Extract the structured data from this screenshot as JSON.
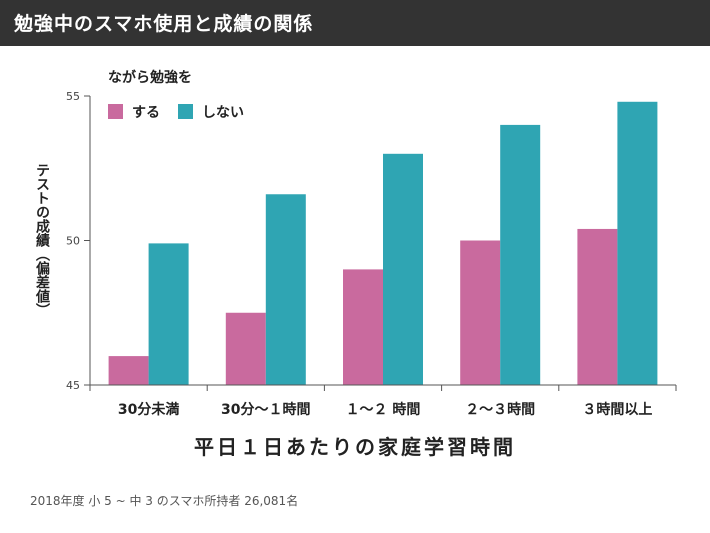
{
  "header": {
    "title": "勉強中のスマホ使用と成績の関係"
  },
  "footnote": "2018年度 小 5 ~ 中 3 のスマホ所持者 26,081名",
  "chart_data": {
    "type": "bar",
    "title": "",
    "legend_title": "ながら勉強を",
    "legend_position": "top-left",
    "categories": [
      "30分未満",
      "30分～１時間",
      "１～２ 時間",
      "２～３時間",
      "３時間以上"
    ],
    "series": [
      {
        "name": "する",
        "color": "#c96a9e",
        "values": [
          46.0,
          47.5,
          49.0,
          50.0,
          50.4
        ]
      },
      {
        "name": "しない",
        "color": "#2fa5b3",
        "values": [
          49.9,
          51.6,
          53.0,
          54.0,
          54.8
        ]
      }
    ],
    "xlabel": "平日１日あたりの家庭学習時間",
    "ylabel": "テストの成績（偏差値）",
    "yticks": [
      45,
      50,
      55
    ],
    "ylim": [
      45,
      55
    ],
    "grid": false
  }
}
